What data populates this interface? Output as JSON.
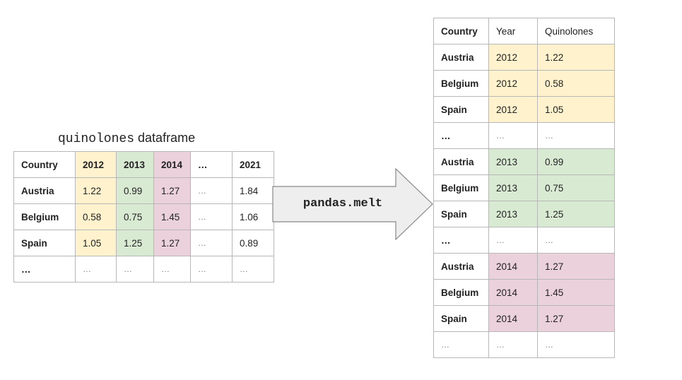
{
  "caption": {
    "code": "quinolones",
    "text": " dataframe"
  },
  "arrow_label": "pandas.melt",
  "left_table": {
    "header": [
      "Country",
      "2012",
      "2013",
      "2014",
      "…",
      "2021"
    ],
    "rows": [
      [
        "Austria",
        "1.22",
        "0.99",
        "1.27",
        "…",
        "1.84"
      ],
      [
        "Belgium",
        "0.58",
        "0.75",
        "1.45",
        "…",
        "1.06"
      ],
      [
        "Spain",
        "1.05",
        "1.25",
        "1.27",
        "…",
        "0.89"
      ],
      [
        "…",
        "…",
        "…",
        "…",
        "…",
        "…"
      ]
    ]
  },
  "right_table": {
    "header": [
      "Country",
      "Year",
      "Quinolones"
    ],
    "rows": [
      [
        "Austria",
        "2012",
        "1.22"
      ],
      [
        "Belgium",
        "2012",
        "0.58"
      ],
      [
        "Spain",
        "2012",
        "1.05"
      ],
      [
        "…",
        "…",
        "…"
      ],
      [
        "Austria",
        "2013",
        "0.99"
      ],
      [
        "Belgium",
        "2013",
        "0.75"
      ],
      [
        "Spain",
        "2013",
        "1.25"
      ],
      [
        "…",
        "…",
        "…"
      ],
      [
        "Austria",
        "2014",
        "1.27"
      ],
      [
        "Belgium",
        "2014",
        "1.45"
      ],
      [
        "Spain",
        "2014",
        "1.27"
      ],
      [
        "…",
        "…",
        "…"
      ]
    ]
  },
  "colors": {
    "year_2012": "#fff2cc",
    "year_2013": "#d9ead3",
    "year_2014": "#ead1dc",
    "arrow_fill": "#eeeeee",
    "arrow_stroke": "#888888"
  }
}
